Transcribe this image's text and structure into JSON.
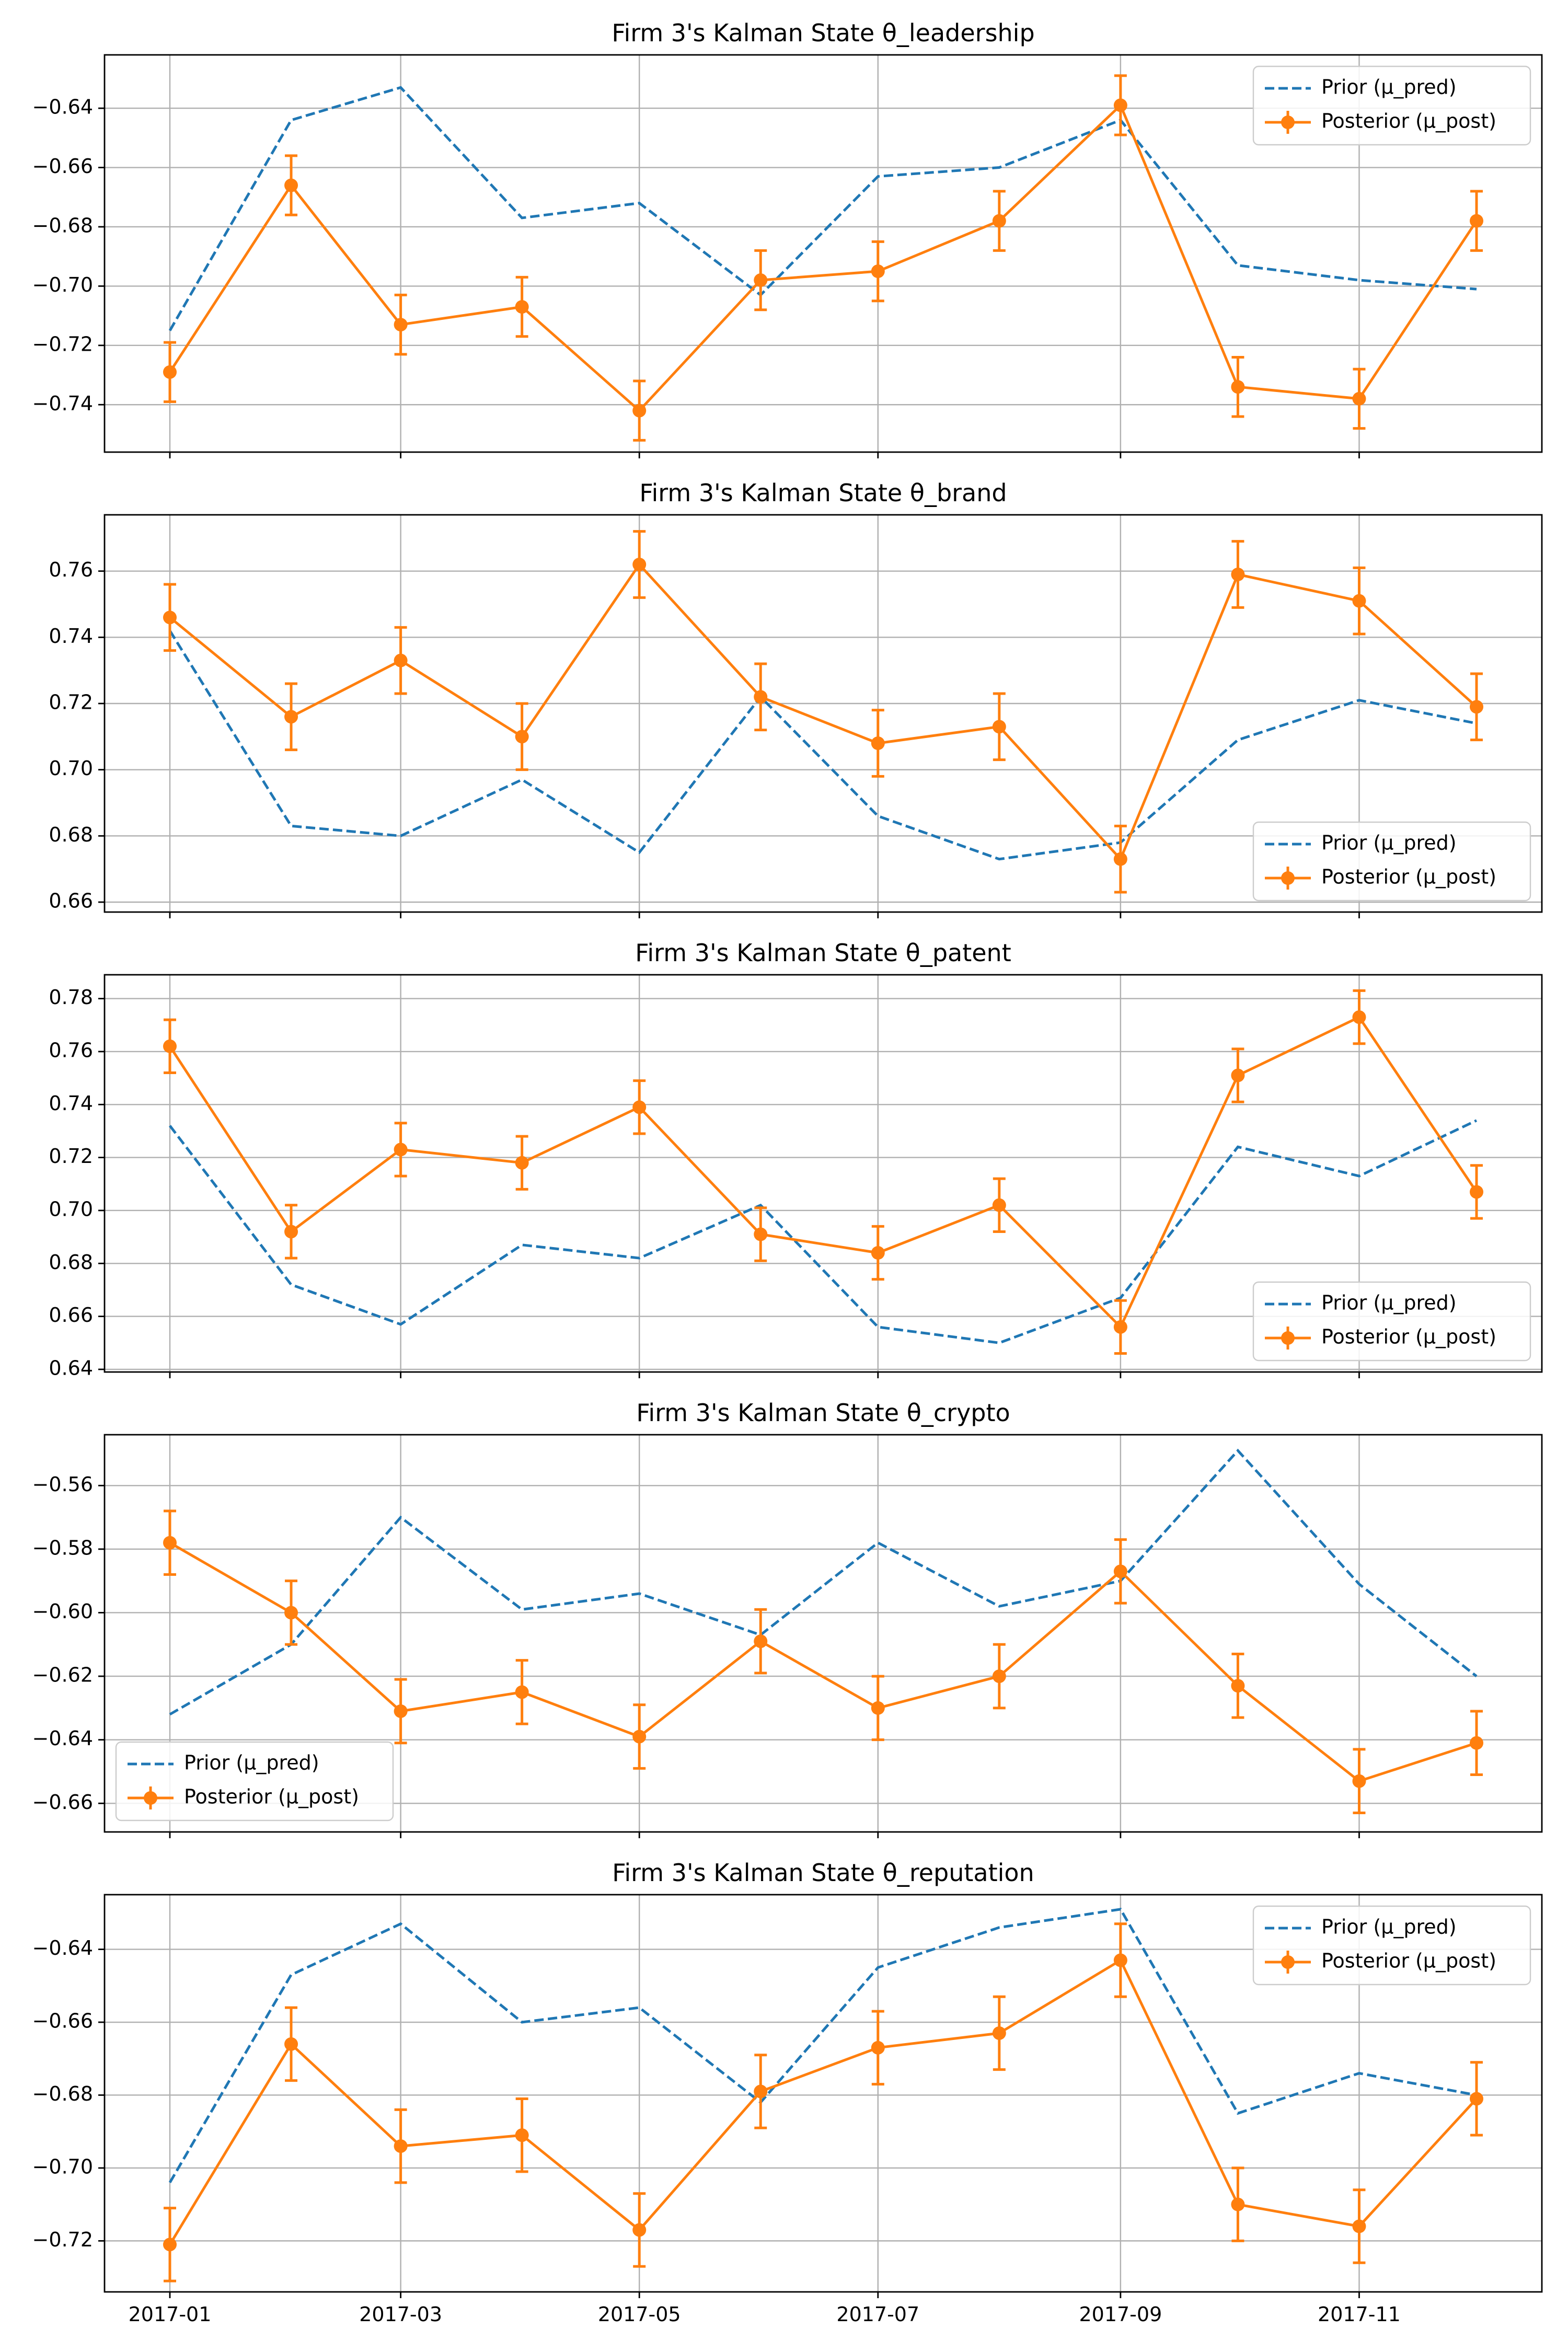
{
  "colors": {
    "prior": "#1f77b4",
    "posterior": "#ff7f0e",
    "grid": "#b0b0b0",
    "frame": "#000000"
  },
  "chart_data": [
    {
      "type": "line",
      "title": "Firm 3's Kalman State θ_leadership",
      "x": [
        "2017-01-01",
        "2017-02-01",
        "2017-03-01",
        "2017-04-01",
        "2017-05-01",
        "2017-06-01",
        "2017-07-01",
        "2017-08-01",
        "2017-09-01",
        "2017-10-01",
        "2017-11-01",
        "2017-12-01"
      ],
      "xticks": [
        "2017-01",
        "2017-03",
        "2017-05",
        "2017-07",
        "2017-09",
        "2017-11"
      ],
      "ylim": [
        -0.756,
        -0.622
      ],
      "yticks": [
        -0.74,
        -0.72,
        -0.7,
        -0.68,
        -0.66,
        -0.64
      ],
      "ytick_labels": [
        "−0.74",
        "−0.72",
        "−0.70",
        "−0.68",
        "−0.66",
        "−0.64"
      ],
      "legend": "upper-right",
      "grid": true,
      "series": [
        {
          "name": "Prior (μ_pred)",
          "style": "dashed",
          "values": [
            -0.715,
            -0.644,
            -0.633,
            -0.677,
            -0.672,
            -0.703,
            -0.663,
            -0.66,
            -0.644,
            -0.693,
            -0.698,
            -0.701
          ]
        },
        {
          "name": "Posterior (μ_post)",
          "style": "solid-markers",
          "error": 0.01,
          "values": [
            -0.729,
            -0.666,
            -0.713,
            -0.707,
            -0.742,
            -0.698,
            -0.695,
            -0.678,
            -0.639,
            -0.734,
            -0.738,
            -0.678
          ]
        }
      ]
    },
    {
      "type": "line",
      "title": "Firm 3's Kalman State θ_brand",
      "x": [
        "2017-01-01",
        "2017-02-01",
        "2017-03-01",
        "2017-04-01",
        "2017-05-01",
        "2017-06-01",
        "2017-07-01",
        "2017-08-01",
        "2017-09-01",
        "2017-10-01",
        "2017-11-01",
        "2017-12-01"
      ],
      "xticks": [
        "2017-01",
        "2017-03",
        "2017-05",
        "2017-07",
        "2017-09",
        "2017-11"
      ],
      "ylim": [
        0.657,
        0.777
      ],
      "yticks": [
        0.66,
        0.68,
        0.7,
        0.72,
        0.74,
        0.76
      ],
      "ytick_labels": [
        "0.66",
        "0.68",
        "0.70",
        "0.72",
        "0.74",
        "0.76"
      ],
      "legend": "lower-right",
      "grid": true,
      "series": [
        {
          "name": "Prior (μ_pred)",
          "style": "dashed",
          "values": [
            0.742,
            0.683,
            0.68,
            0.697,
            0.675,
            0.722,
            0.686,
            0.673,
            0.678,
            0.709,
            0.721,
            0.714
          ]
        },
        {
          "name": "Posterior (μ_post)",
          "style": "solid-markers",
          "error": 0.01,
          "values": [
            0.746,
            0.716,
            0.733,
            0.71,
            0.762,
            0.722,
            0.708,
            0.713,
            0.673,
            0.759,
            0.751,
            0.719
          ]
        }
      ]
    },
    {
      "type": "line",
      "title": "Firm 3's Kalman State θ_patent",
      "x": [
        "2017-01-01",
        "2017-02-01",
        "2017-03-01",
        "2017-04-01",
        "2017-05-01",
        "2017-06-01",
        "2017-07-01",
        "2017-08-01",
        "2017-09-01",
        "2017-10-01",
        "2017-11-01",
        "2017-12-01"
      ],
      "xticks": [
        "2017-01",
        "2017-03",
        "2017-05",
        "2017-07",
        "2017-09",
        "2017-11"
      ],
      "ylim": [
        0.639,
        0.789
      ],
      "yticks": [
        0.64,
        0.66,
        0.68,
        0.7,
        0.72,
        0.74,
        0.76,
        0.78
      ],
      "ytick_labels": [
        "0.64",
        "0.66",
        "0.68",
        "0.70",
        "0.72",
        "0.74",
        "0.76",
        "0.78"
      ],
      "legend": "lower-right",
      "grid": true,
      "series": [
        {
          "name": "Prior (μ_pred)",
          "style": "dashed",
          "values": [
            0.732,
            0.672,
            0.657,
            0.687,
            0.682,
            0.702,
            0.656,
            0.65,
            0.667,
            0.724,
            0.713,
            0.734
          ]
        },
        {
          "name": "Posterior (μ_post)",
          "style": "solid-markers",
          "error": 0.01,
          "values": [
            0.762,
            0.692,
            0.723,
            0.718,
            0.739,
            0.691,
            0.684,
            0.702,
            0.656,
            0.751,
            0.773,
            0.707
          ]
        }
      ]
    },
    {
      "type": "line",
      "title": "Firm 3's Kalman State θ_crypto",
      "x": [
        "2017-01-01",
        "2017-02-01",
        "2017-03-01",
        "2017-04-01",
        "2017-05-01",
        "2017-06-01",
        "2017-07-01",
        "2017-08-01",
        "2017-09-01",
        "2017-10-01",
        "2017-11-01",
        "2017-12-01"
      ],
      "xticks": [
        "2017-01",
        "2017-03",
        "2017-05",
        "2017-07",
        "2017-09",
        "2017-11"
      ],
      "ylim": [
        -0.669,
        -0.544
      ],
      "yticks": [
        -0.66,
        -0.64,
        -0.62,
        -0.6,
        -0.58,
        -0.56
      ],
      "ytick_labels": [
        "−0.66",
        "−0.64",
        "−0.62",
        "−0.60",
        "−0.58",
        "−0.56"
      ],
      "legend": "lower-left",
      "grid": true,
      "series": [
        {
          "name": "Prior (μ_pred)",
          "style": "dashed",
          "values": [
            -0.632,
            -0.61,
            -0.57,
            -0.599,
            -0.594,
            -0.607,
            -0.578,
            -0.598,
            -0.59,
            -0.549,
            -0.591,
            -0.62
          ]
        },
        {
          "name": "Posterior (μ_post)",
          "style": "solid-markers",
          "error": 0.01,
          "values": [
            -0.578,
            -0.6,
            -0.631,
            -0.625,
            -0.639,
            -0.609,
            -0.63,
            -0.62,
            -0.587,
            -0.623,
            -0.653,
            -0.641
          ]
        }
      ]
    },
    {
      "type": "line",
      "title": "Firm 3's Kalman State θ_reputation",
      "x": [
        "2017-01-01",
        "2017-02-01",
        "2017-03-01",
        "2017-04-01",
        "2017-05-01",
        "2017-06-01",
        "2017-07-01",
        "2017-08-01",
        "2017-09-01",
        "2017-10-01",
        "2017-11-01",
        "2017-12-01"
      ],
      "xticks": [
        "2017-01",
        "2017-03",
        "2017-05",
        "2017-07",
        "2017-09",
        "2017-11"
      ],
      "ylim": [
        -0.734,
        -0.625
      ],
      "yticks": [
        -0.72,
        -0.7,
        -0.68,
        -0.66,
        -0.64
      ],
      "ytick_labels": [
        "−0.72",
        "−0.70",
        "−0.68",
        "−0.66",
        "−0.64"
      ],
      "legend": "upper-right",
      "grid": true,
      "series": [
        {
          "name": "Prior (μ_pred)",
          "style": "dashed",
          "values": [
            -0.704,
            -0.647,
            -0.633,
            -0.66,
            -0.656,
            -0.682,
            -0.645,
            -0.634,
            -0.629,
            -0.685,
            -0.674,
            -0.68
          ]
        },
        {
          "name": "Posterior (μ_post)",
          "style": "solid-markers",
          "error": 0.01,
          "values": [
            -0.721,
            -0.666,
            -0.694,
            -0.691,
            -0.717,
            -0.679,
            -0.667,
            -0.663,
            -0.643,
            -0.71,
            -0.716,
            -0.681
          ]
        }
      ]
    }
  ]
}
